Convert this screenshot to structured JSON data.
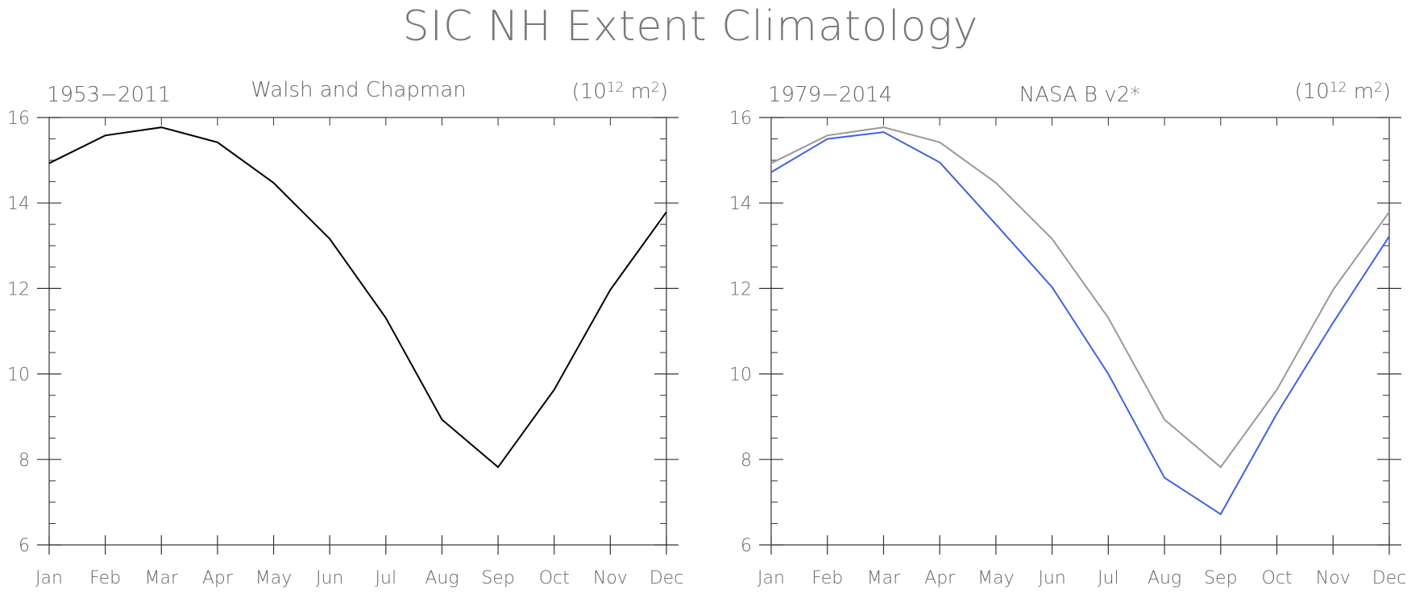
{
  "page": {
    "title": "SIC NH Extent Climatology"
  },
  "panels": [
    {
      "left_label": "1953−2011",
      "center_label": "Walsh and Chapman",
      "unit_base": "(10",
      "unit_exp": "12",
      "unit_mid": " m",
      "unit_exp2": "2",
      "unit_end": ")"
    },
    {
      "left_label": "1979−2014",
      "center_label": "NASA B v2*",
      "unit_base": "(10",
      "unit_exp": "12",
      "unit_mid": " m",
      "unit_exp2": "2",
      "unit_end": ")"
    }
  ],
  "chart_data": [
    {
      "type": "line",
      "categories": [
        "Jan",
        "Feb",
        "Mar",
        "Apr",
        "May",
        "Jun",
        "Jul",
        "Aug",
        "Sep",
        "Oct",
        "Nov",
        "Dec"
      ],
      "ylim": [
        6,
        16
      ],
      "yticks": [
        6,
        8,
        10,
        12,
        14,
        16
      ],
      "y_minor_step": 0.5,
      "series": [
        {
          "values": [
            14.93,
            15.58,
            15.77,
            15.42,
            14.47,
            13.16,
            11.31,
            8.93,
            7.82,
            9.63,
            11.97,
            13.79
          ],
          "color": "#000000"
        }
      ]
    },
    {
      "type": "line",
      "categories": [
        "Jan",
        "Feb",
        "Mar",
        "Apr",
        "May",
        "Jun",
        "Jul",
        "Aug",
        "Sep",
        "Oct",
        "Nov",
        "Dec"
      ],
      "ylim": [
        6,
        16
      ],
      "yticks": [
        6,
        8,
        10,
        12,
        14,
        16
      ],
      "y_minor_step": 0.5,
      "series": [
        {
          "values": [
            14.93,
            15.58,
            15.77,
            15.42,
            14.47,
            13.16,
            11.31,
            8.93,
            7.82,
            9.63,
            11.97,
            13.79
          ],
          "color": "#999999"
        },
        {
          "values": [
            14.72,
            15.5,
            15.66,
            14.95,
            13.5,
            12.03,
            10.0,
            7.57,
            6.72,
            9.07,
            11.2,
            13.22
          ],
          "color": "#3d63e0"
        }
      ]
    }
  ]
}
